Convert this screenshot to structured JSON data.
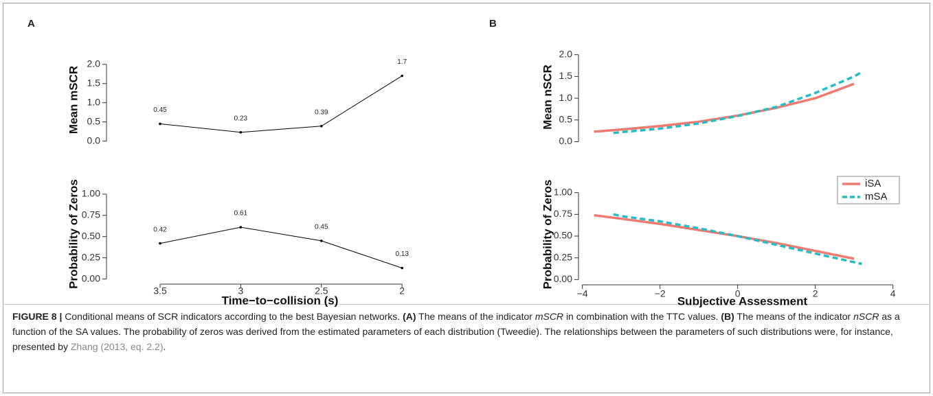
{
  "panel_labels": [
    "A",
    "B"
  ],
  "chart_data": [
    {
      "type": "line",
      "y_label": "Mean mSCR",
      "categories": [
        "3.5",
        "3",
        "2.5",
        "2"
      ],
      "x_axis": false,
      "values": [
        0.45,
        0.23,
        0.39,
        1.7
      ],
      "color": "#000000",
      "data_labels": true,
      "ylim": [
        -0.15,
        2.3
      ],
      "yticks": [
        {
          "value": 0,
          "label": "0.0"
        },
        {
          "value": 0.5,
          "label": "0.5"
        },
        {
          "value": 1,
          "label": "1.0"
        },
        {
          "value": 1.5,
          "label": "1.5"
        },
        {
          "value": 2,
          "label": "2.0"
        }
      ]
    },
    {
      "type": "line",
      "y_label": "Probability of Zeros",
      "x_label": "Time−to−collision (s)",
      "categories": [
        "3.5",
        "3",
        "2.5",
        "2"
      ],
      "x_axis": true,
      "values": [
        0.42,
        0.61,
        0.45,
        0.13
      ],
      "color": "#000000",
      "data_labels": true,
      "ylim": [
        -0.06,
        1.12
      ],
      "yticks": [
        {
          "value": 0,
          "label": "0.00"
        },
        {
          "value": 0.25,
          "label": "0.25"
        },
        {
          "value": 0.5,
          "label": "0.50"
        },
        {
          "value": 0.75,
          "label": "0.75"
        },
        {
          "value": 1,
          "label": "1.00"
        }
      ]
    },
    {
      "type": "curve",
      "y_label": "Mean nSCR",
      "x_axis": false,
      "xlim": [
        -4.1,
        4.2
      ],
      "ylim": [
        -0.15,
        2.2
      ],
      "yticks": [
        {
          "value": 0,
          "label": "0.0"
        },
        {
          "value": 0.5,
          "label": "0.5"
        },
        {
          "value": 1,
          "label": "1.0"
        },
        {
          "value": 1.5,
          "label": "1.5"
        },
        {
          "value": 2,
          "label": "2.0"
        }
      ],
      "series": [
        {
          "color": "#f07a70",
          "dashed": false,
          "x": [
            -3.7,
            -3,
            -2,
            -1,
            0,
            1,
            2,
            3
          ],
          "values": [
            0.23,
            0.28,
            0.36,
            0.46,
            0.6,
            0.78,
            1.0,
            1.33
          ]
        },
        {
          "color": "#25bcc6",
          "dashed": true,
          "x": [
            -3.2,
            -3,
            -2,
            -1,
            0,
            1,
            2,
            3,
            3.2
          ],
          "values": [
            0.2,
            0.22,
            0.3,
            0.42,
            0.59,
            0.8,
            1.12,
            1.5,
            1.6
          ]
        }
      ]
    },
    {
      "type": "curve",
      "y_label": "Probability of Zeros",
      "x_label": "Subjective Assessment",
      "x_axis": true,
      "xlim": [
        -4.1,
        4.2
      ],
      "xticks": [
        {
          "value": -4,
          "label": "−4"
        },
        {
          "value": -2,
          "label": "−2"
        },
        0,
        2,
        4
      ],
      "ylim": [
        -0.06,
        1.1
      ],
      "yticks": [
        {
          "value": 0,
          "label": "0.00"
        },
        {
          "value": 0.25,
          "label": "0.25"
        },
        {
          "value": 0.5,
          "label": "0.50"
        },
        {
          "value": 0.75,
          "label": "0.75"
        },
        {
          "value": 1,
          "label": "1.00"
        }
      ],
      "legend": "top-right",
      "series": [
        {
          "name": "iSA",
          "color": "#f07a70",
          "dashed": false,
          "x": [
            -3.7,
            -3,
            -2,
            -1,
            0,
            1,
            2,
            3
          ],
          "values": [
            0.74,
            0.7,
            0.64,
            0.57,
            0.5,
            0.42,
            0.33,
            0.24
          ]
        },
        {
          "name": "mSA",
          "color": "#25bcc6",
          "dashed": true,
          "x": [
            -3.2,
            -3,
            -2,
            -1,
            0,
            1,
            2,
            3,
            3.2
          ],
          "values": [
            0.75,
            0.73,
            0.67,
            0.59,
            0.5,
            0.4,
            0.3,
            0.2,
            0.18
          ]
        }
      ]
    }
  ],
  "caption": [
    "FIGURE 8 |",
    "Conditional means of SCR indicators according to the best Bayesian networks.",
    "(A)",
    "The means of the indicator",
    "mSCR",
    "in combination with the TTC values.",
    "(B)",
    "The means of the indicator",
    "nSCR",
    "as a function of the SA values. The probability of zeros was derived from the estimated parameters of each distribution (Tweedie). The relationships between the parameters of such distributions were, for instance, presented by",
    "Zhang (2013, eq. 2.2)",
    "."
  ]
}
